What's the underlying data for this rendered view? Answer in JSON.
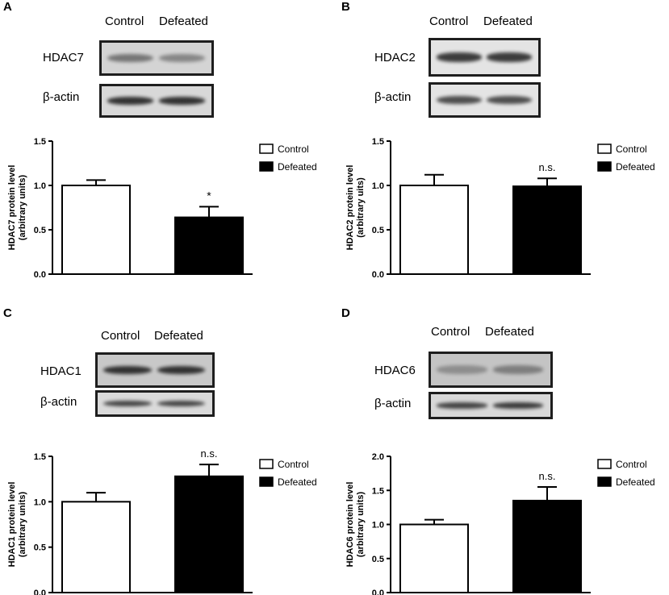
{
  "panels": [
    {
      "letter": "A",
      "blot": {
        "lanes": [
          "Control",
          "Defeated"
        ],
        "rows": [
          {
            "label": "HDAC7",
            "band_intensity": [
              0.55,
              0.45
            ],
            "background": "#d4d4d4"
          },
          {
            "label": "β-actin",
            "band_intensity": [
              0.95,
              0.95
            ],
            "background": "#d8d8d8"
          }
        ]
      }
    },
    {
      "letter": "B",
      "blot": {
        "lanes": [
          "Control",
          "Defeated"
        ],
        "rows": [
          {
            "label": "HDAC2",
            "band_intensity": [
              0.9,
              0.9
            ],
            "background": "#e4e4e4"
          },
          {
            "label": "β-actin",
            "band_intensity": [
              0.8,
              0.8
            ],
            "background": "#e4e4e4"
          }
        ]
      }
    },
    {
      "letter": "C",
      "blot": {
        "lanes": [
          "Control",
          "Defeated"
        ],
        "rows": [
          {
            "label": "HDAC1",
            "band_intensity": [
              0.95,
              0.95
            ],
            "background": "#c8c8c8"
          },
          {
            "label": "β-actin",
            "band_intensity": [
              0.85,
              0.85
            ],
            "background": "#dadada"
          }
        ]
      }
    },
    {
      "letter": "D",
      "blot": {
        "lanes": [
          "Control",
          "Defeated"
        ],
        "rows": [
          {
            "label": "HDAC6",
            "band_intensity": [
              0.35,
              0.45
            ],
            "background": "#c4c4c4"
          },
          {
            "label": "β-actin",
            "band_intensity": [
              0.85,
              0.9
            ],
            "background": "#d8d8d8"
          }
        ]
      }
    }
  ],
  "chart_data": [
    {
      "type": "bar",
      "categories": [
        "Control",
        "Defeated"
      ],
      "values": [
        1.0,
        0.64
      ],
      "errors": [
        0.06,
        0.12
      ],
      "colors": [
        "#ffffff",
        "#000000"
      ],
      "ylabel_lines": [
        "HDAC7 protein level",
        "(arbitrary units)"
      ],
      "ylim": [
        0,
        1.5
      ],
      "yticks": [
        "0.0",
        "0.5",
        "1.0",
        "1.5"
      ],
      "annotation": "*",
      "legend": [
        "Control",
        "Defeated"
      ]
    },
    {
      "type": "bar",
      "categories": [
        "Control",
        "Defeated"
      ],
      "values": [
        1.0,
        0.99
      ],
      "errors": [
        0.12,
        0.09
      ],
      "colors": [
        "#ffffff",
        "#000000"
      ],
      "ylabel_lines": [
        "HDAC2 protein level",
        "(arbitrary uits)"
      ],
      "ylim": [
        0,
        1.5
      ],
      "yticks": [
        "0.0",
        "0.5",
        "1.0",
        "1.5"
      ],
      "annotation": "n.s.",
      "legend": [
        "Control",
        "Defeated"
      ]
    },
    {
      "type": "bar",
      "categories": [
        "Control",
        "Defeated"
      ],
      "values": [
        1.0,
        1.28
      ],
      "errors": [
        0.1,
        0.13
      ],
      "colors": [
        "#ffffff",
        "#000000"
      ],
      "ylabel_lines": [
        "HDAC1 protein level",
        "(arbitrary units)"
      ],
      "ylim": [
        0,
        1.5
      ],
      "yticks": [
        "0.0",
        "0.5",
        "1.0",
        "1.5"
      ],
      "annotation": "n.s.",
      "legend": [
        "Control",
        "Defeated"
      ]
    },
    {
      "type": "bar",
      "categories": [
        "Control",
        "Defeated"
      ],
      "values": [
        1.0,
        1.35
      ],
      "errors": [
        0.07,
        0.2
      ],
      "colors": [
        "#ffffff",
        "#000000"
      ],
      "ylabel_lines": [
        "HDAC6 protein level",
        "(arbitrary units)"
      ],
      "ylim": [
        0,
        2.0
      ],
      "yticks": [
        "0.0",
        "0.5",
        "1.0",
        "1.5",
        "2.0"
      ],
      "annotation": "n.s.",
      "legend": [
        "Control",
        "Defeated"
      ]
    }
  ]
}
